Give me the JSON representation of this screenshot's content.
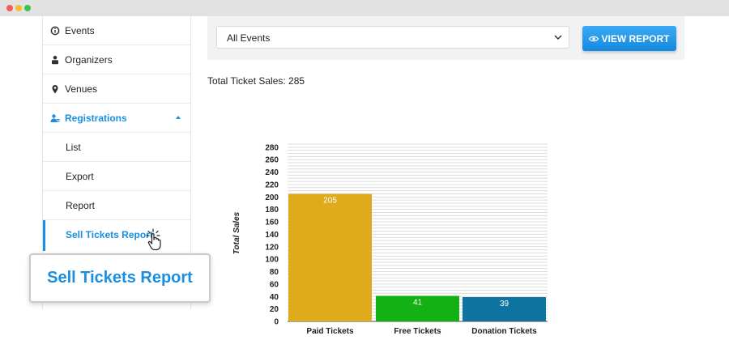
{
  "sidebar": {
    "items": [
      {
        "label": "Events",
        "icon": "info-circle-icon"
      },
      {
        "label": "Organizers",
        "icon": "organizer-icon"
      },
      {
        "label": "Venues",
        "icon": "map-pin-icon"
      },
      {
        "label": "Registrations",
        "icon": "users-icon"
      },
      {
        "label": "List"
      },
      {
        "label": "Export"
      },
      {
        "label": "Report"
      },
      {
        "label": "Sell Tickets Report"
      }
    ],
    "accent_color": "#1a8fe0"
  },
  "callout": {
    "text": "Sell Tickets Report"
  },
  "filter": {
    "selected_event": "All Events",
    "view_button_label": "VIEW REPORT"
  },
  "summary": {
    "total_text": "Total Ticket Sales: 285"
  },
  "chart_data": {
    "type": "bar",
    "categories": [
      "Paid Tickets",
      "Free Tickets",
      "Donation Tickets"
    ],
    "values": [
      205,
      41,
      39
    ],
    "colors": [
      "#dfaa1b",
      "#14b114",
      "#0f73a1"
    ],
    "ylabel": "Total Sales",
    "ylim": [
      0,
      285
    ],
    "yticks": [
      0,
      20,
      40,
      60,
      80,
      100,
      120,
      140,
      160,
      180,
      200,
      220,
      240,
      260,
      280
    ],
    "grid": true
  }
}
